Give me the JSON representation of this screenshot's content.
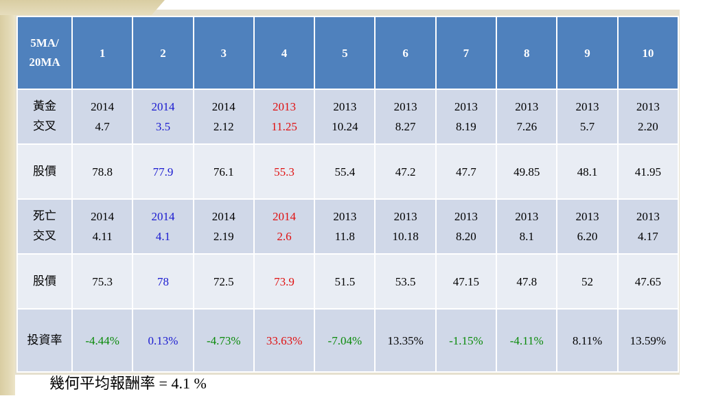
{
  "header": {
    "corner_line1": "5MA/",
    "corner_line2": "20MA",
    "columns": [
      "1",
      "2",
      "3",
      "4",
      "5",
      "6",
      "7",
      "8",
      "9",
      "10"
    ]
  },
  "rows": {
    "golden_cross": {
      "label_line1": "黃金",
      "label_line2": "交叉",
      "cells": [
        {
          "line1": "2014",
          "line2": "4.7"
        },
        {
          "line1": "2014",
          "line2": "3.5"
        },
        {
          "line1": "2014",
          "line2": "2.12"
        },
        {
          "line1": "2013",
          "line2": "11.25"
        },
        {
          "line1": "2013",
          "line2": "10.24"
        },
        {
          "line1": "2013",
          "line2": "8.27"
        },
        {
          "line1": "2013",
          "line2": "8.19"
        },
        {
          "line1": "2013",
          "line2": "7.26"
        },
        {
          "line1": "2013",
          "line2": "5.7"
        },
        {
          "line1": "2013",
          "line2": "2.20"
        }
      ]
    },
    "price_buy": {
      "label": "股價",
      "cells": [
        "78.8",
        "77.9",
        "76.1",
        "55.3",
        "55.4",
        "47.2",
        "47.7",
        "49.85",
        "48.1",
        "41.95"
      ]
    },
    "death_cross": {
      "label_line1": "死亡",
      "label_line2": "交叉",
      "cells": [
        {
          "line1": "2014",
          "line2": "4.11"
        },
        {
          "line1": "2014",
          "line2": "4.1"
        },
        {
          "line1": "2014",
          "line2": "2.19"
        },
        {
          "line1": "2014",
          "line2": "2.6"
        },
        {
          "line1": "2013",
          "line2": "11.8"
        },
        {
          "line1": "2013",
          "line2": "10.18"
        },
        {
          "line1": "2013",
          "line2": "8.20"
        },
        {
          "line1": "2013",
          "line2": "8.1"
        },
        {
          "line1": "2013",
          "line2": "6.20"
        },
        {
          "line1": "2013",
          "line2": "4.17"
        }
      ]
    },
    "price_sell": {
      "label": "股價",
      "cells": [
        "75.3",
        "78",
        "72.5",
        "73.9",
        "51.5",
        "53.5",
        "47.15",
        "47.8",
        "52",
        "47.65"
      ]
    },
    "return_rate": {
      "label": "投資率",
      "cells": [
        "-4.44%",
        "0.13%",
        "-4.73%",
        "33.63%",
        "-7.04%",
        "13.35%",
        "-1.15%",
        "-4.11%",
        "8.11%",
        "13.59%"
      ]
    }
  },
  "caption": {
    "label": "幾何平均報酬率",
    "equals": " = ",
    "value": "4.1",
    "unit": " %"
  },
  "colors": {
    "header_bg": "#4f81bd",
    "row_dark": "#d0d8e8",
    "row_light": "#e9edf4",
    "highlight_blue": "#1a1ad0",
    "highlight_red": "#e01010",
    "return_green": "#0a8a0a"
  }
}
